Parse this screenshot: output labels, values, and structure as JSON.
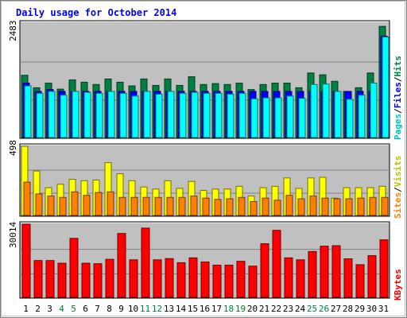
{
  "chart_data": [
    {
      "type": "bar",
      "title": "Daily usage for October 2014",
      "panel": "hits-files-pages",
      "categories": [
        "1",
        "2",
        "3",
        "4",
        "5",
        "6",
        "7",
        "8",
        "9",
        "10",
        "11",
        "12",
        "13",
        "14",
        "15",
        "16",
        "17",
        "18",
        "19",
        "20",
        "21",
        "22",
        "23",
        "24",
        "25",
        "26",
        "27",
        "28",
        "29",
        "30",
        "31"
      ],
      "weekend_days": [
        "4",
        "5",
        "11",
        "12",
        "18",
        "19",
        "25",
        "26"
      ],
      "ymax_label": "2483",
      "ylim": [
        0,
        2483
      ],
      "right_labels": [
        "Pages",
        "Files",
        "Hits"
      ],
      "series": [
        {
          "name": "Hits",
          "color": "#008040",
          "values": [
            1350,
            1080,
            1180,
            1050,
            1250,
            1200,
            1150,
            1270,
            1200,
            1120,
            1270,
            1130,
            1270,
            1130,
            1320,
            1150,
            1170,
            1150,
            1180,
            1040,
            1150,
            1180,
            1180,
            1080,
            1400,
            1360,
            1220,
            1000,
            1080,
            1400,
            2410
          ]
        },
        {
          "name": "Files",
          "color": "#0000ff",
          "values": [
            1180,
            1000,
            1040,
            1000,
            1000,
            1000,
            1000,
            1000,
            1000,
            1000,
            1000,
            1000,
            1000,
            1000,
            1000,
            1000,
            1000,
            1000,
            1000,
            1000,
            1000,
            1000,
            1000,
            1000,
            1000,
            1000,
            1000,
            1000,
            1000,
            1000,
            2200
          ]
        },
        {
          "name": "Pages",
          "color": "#00ffff",
          "values": [
            1120,
            960,
            1000,
            920,
            1000,
            980,
            960,
            1000,
            960,
            900,
            1000,
            940,
            1000,
            960,
            980,
            960,
            960,
            940,
            960,
            840,
            860,
            860,
            900,
            850,
            1150,
            1160,
            1000,
            830,
            920,
            1180,
            2180
          ]
        }
      ]
    },
    {
      "type": "bar",
      "panel": "visits-sites",
      "categories": [
        "1",
        "2",
        "3",
        "4",
        "5",
        "6",
        "7",
        "8",
        "9",
        "10",
        "11",
        "12",
        "13",
        "14",
        "15",
        "16",
        "17",
        "18",
        "19",
        "20",
        "21",
        "22",
        "23",
        "24",
        "25",
        "26",
        "27",
        "28",
        "29",
        "30",
        "31"
      ],
      "ymax_label": "498",
      "ylim": [
        0,
        498
      ],
      "right_labels": [
        "Sites",
        "Visits"
      ],
      "series": [
        {
          "name": "Visits",
          "color": "#ffff00",
          "values": [
            498,
            320,
            200,
            225,
            260,
            250,
            255,
            380,
            300,
            250,
            205,
            190,
            250,
            195,
            245,
            180,
            190,
            190,
            210,
            140,
            200,
            210,
            270,
            195,
            270,
            275,
            125,
            200,
            200,
            200,
            210
          ]
        },
        {
          "name": "Sites",
          "color": "#ff8000",
          "values": [
            240,
            155,
            140,
            130,
            170,
            145,
            165,
            170,
            130,
            130,
            130,
            130,
            130,
            130,
            140,
            125,
            115,
            120,
            130,
            100,
            125,
            110,
            145,
            120,
            140,
            125,
            120,
            120,
            125,
            130,
            130
          ]
        }
      ]
    },
    {
      "type": "bar",
      "panel": "kbytes",
      "categories": [
        "1",
        "2",
        "3",
        "4",
        "5",
        "6",
        "7",
        "8",
        "9",
        "10",
        "11",
        "12",
        "13",
        "14",
        "15",
        "16",
        "17",
        "18",
        "19",
        "20",
        "21",
        "22",
        "23",
        "24",
        "25",
        "26",
        "27",
        "28",
        "29",
        "30",
        "31"
      ],
      "ymax_label": "30014",
      "ylim": [
        0,
        30014
      ],
      "right_labels": [
        "KBytes"
      ],
      "series": [
        {
          "name": "KBytes",
          "color": "#ff0000",
          "values": [
            30014,
            15100,
            15100,
            14000,
            24200,
            14000,
            13800,
            15600,
            26200,
            15400,
            28400,
            15400,
            15900,
            14200,
            16200,
            14500,
            13200,
            13200,
            14800,
            12800,
            22000,
            27500,
            16200,
            15400,
            18800,
            21000,
            21200,
            15800,
            13400,
            17100,
            23600
          ]
        }
      ]
    }
  ],
  "colors": {
    "panel_bg": "#c0c0c0",
    "title": "#0000ff",
    "weekend_label": "#008040",
    "weekday_label": "#000000",
    "separator_slash": "#000000"
  }
}
